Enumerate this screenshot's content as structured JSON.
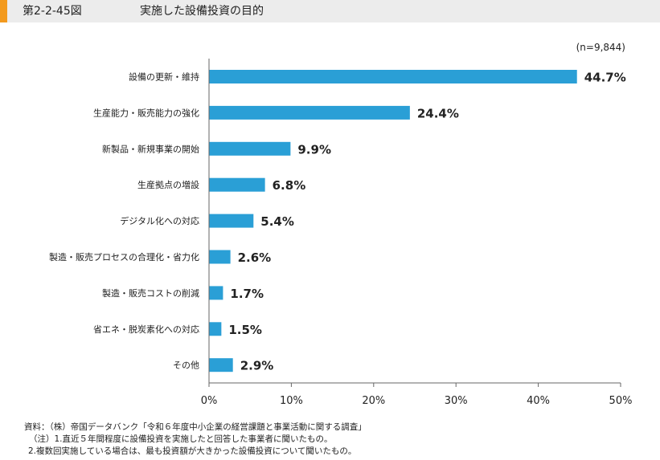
{
  "header": {
    "figure_number": "第2-2-45図",
    "title": "実施した設備投資の目的"
  },
  "sample_size": "(n=9,844)",
  "colors": {
    "bar": "#2a9fd6",
    "accent": "#f39a1e",
    "header_bg": "#ececec"
  },
  "chart_data": {
    "type": "bar",
    "orientation": "horizontal",
    "categories": [
      "設備の更新・維持",
      "生産能力・販売能力の強化",
      "新製品・新規事業の開始",
      "生産拠点の増設",
      "デジタル化への対応",
      "製造・販売プロセスの合理化・省力化",
      "製造・販売コストの削減",
      "省エネ・脱炭素化への対応",
      "その他"
    ],
    "values": [
      44.7,
      24.4,
      9.9,
      6.8,
      5.4,
      2.6,
      1.7,
      1.5,
      2.9
    ],
    "value_labels": [
      "44.7%",
      "24.4%",
      "9.9%",
      "6.8%",
      "5.4%",
      "2.6%",
      "1.7%",
      "1.5%",
      "2.9%"
    ],
    "xlim": [
      0,
      50
    ],
    "xticks": [
      0,
      10,
      20,
      30,
      40,
      50
    ],
    "xtick_labels": [
      "0%",
      "10%",
      "20%",
      "30%",
      "40%",
      "50%"
    ],
    "grid": false
  },
  "footnotes": [
    "資料：（株）帝国データバンク「令和６年度中小企業の経営課題と事業活動に関する調査」",
    "（注）1.直近５年間程度に設備投資を実施したと回答した事業者に聞いたもの。",
    "2.複数回実施している場合は、最も投資額が大きかった設備投資について聞いたもの。"
  ]
}
